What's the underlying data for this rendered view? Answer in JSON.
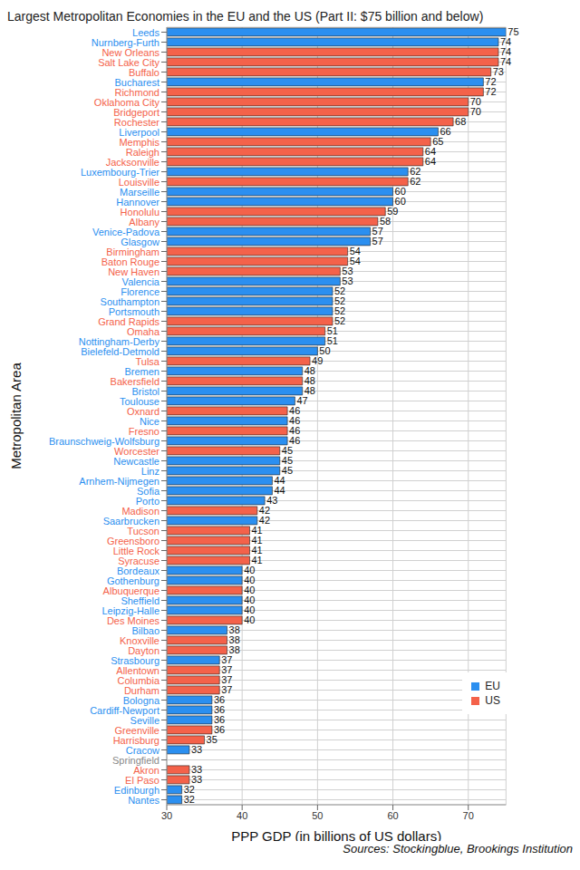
{
  "chart_data": {
    "type": "bar",
    "title": "Largest Metropolitan Economies in the EU and the US (Part II: $75 billion and below)",
    "x_label": "PPP GDP (in billions of US dollars)",
    "y_label": "Metropolitan Area",
    "source": "Sources: Stockingblue, Brookings Institution",
    "orientation": "horizontal",
    "grid": true,
    "data_labels": true,
    "legend": "bottom right",
    "xlim": [
      30,
      75
    ],
    "xticks": [
      30,
      40,
      50,
      60,
      70
    ],
    "categories": [
      "Leeds",
      "Nurnberg-Furth",
      "New Orleans",
      "Salt Lake City",
      "Buffalo",
      "Bucharest",
      "Richmond",
      "Oklahoma City",
      "Bridgeport",
      "Rochester",
      "Liverpool",
      "Memphis",
      "Raleigh",
      "Jacksonville",
      "Luxembourg-Trier",
      "Louisville",
      "Marseille",
      "Hannover",
      "Honolulu",
      "Albany",
      "Venice-Padova",
      "Glasgow",
      "Birmingham",
      "Baton Rouge",
      "New Haven",
      "Valencia",
      "Florence",
      "Southampton",
      "Portsmouth",
      "Grand Rapids",
      "Omaha",
      "Nottingham-Derby",
      "Bielefeld-Detmold",
      "Tulsa",
      "Bremen",
      "Bakersfield",
      "Bristol",
      "Toulouse",
      "Oxnard",
      "Nice",
      "Fresno",
      "Braunschweig-Wolfsburg",
      "Worcester",
      "Newcastle",
      "Linz",
      "Arnhem-Nijmegen",
      "Sofia",
      "Porto",
      "Madison",
      "Saarbrucken",
      "Tucson",
      "Greensboro",
      "Little Rock",
      "Syracuse",
      "Bordeaux",
      "Gothenburg",
      "Albuquerque",
      "Sheffield",
      "Leipzig-Halle",
      "Des Moines",
      "Bilbao",
      "Knoxville",
      "Dayton",
      "Strasbourg",
      "Allentown",
      "Columbia",
      "Durham",
      "Bologna",
      "Cardiff-Newport",
      "Seville",
      "Greenville",
      "Harrisburg",
      "Cracow",
      "Springfield",
      "Akron",
      "El Paso",
      "Edinburgh",
      "Nantes"
    ],
    "series": [
      {
        "name": "EU",
        "color": "#2b8ff0",
        "values": [
          75,
          74,
          null,
          null,
          null,
          72,
          null,
          null,
          null,
          null,
          66,
          null,
          null,
          null,
          62,
          null,
          60,
          60,
          null,
          null,
          57,
          57,
          null,
          null,
          null,
          53,
          52,
          52,
          52,
          null,
          null,
          51,
          50,
          null,
          48,
          null,
          48,
          47,
          null,
          46,
          null,
          46,
          null,
          45,
          45,
          44,
          44,
          43,
          null,
          42,
          null,
          null,
          null,
          null,
          40,
          40,
          null,
          40,
          40,
          null,
          38,
          null,
          null,
          37,
          null,
          null,
          null,
          36,
          36,
          36,
          null,
          null,
          33,
          null,
          null,
          null,
          32,
          32
        ]
      },
      {
        "name": "US",
        "color": "#f4624a",
        "values": [
          null,
          null,
          74,
          74,
          73,
          null,
          72,
          70,
          70,
          68,
          null,
          65,
          64,
          64,
          null,
          62,
          null,
          null,
          59,
          58,
          null,
          null,
          54,
          54,
          53,
          null,
          null,
          null,
          null,
          52,
          51,
          null,
          null,
          49,
          null,
          48,
          null,
          null,
          46,
          null,
          46,
          null,
          45,
          null,
          null,
          null,
          null,
          null,
          42,
          null,
          41,
          41,
          41,
          41,
          null,
          null,
          40,
          null,
          null,
          40,
          null,
          38,
          38,
          null,
          37,
          37,
          37,
          null,
          null,
          null,
          36,
          35,
          null,
          null,
          33,
          33,
          null,
          null
        ]
      }
    ]
  }
}
